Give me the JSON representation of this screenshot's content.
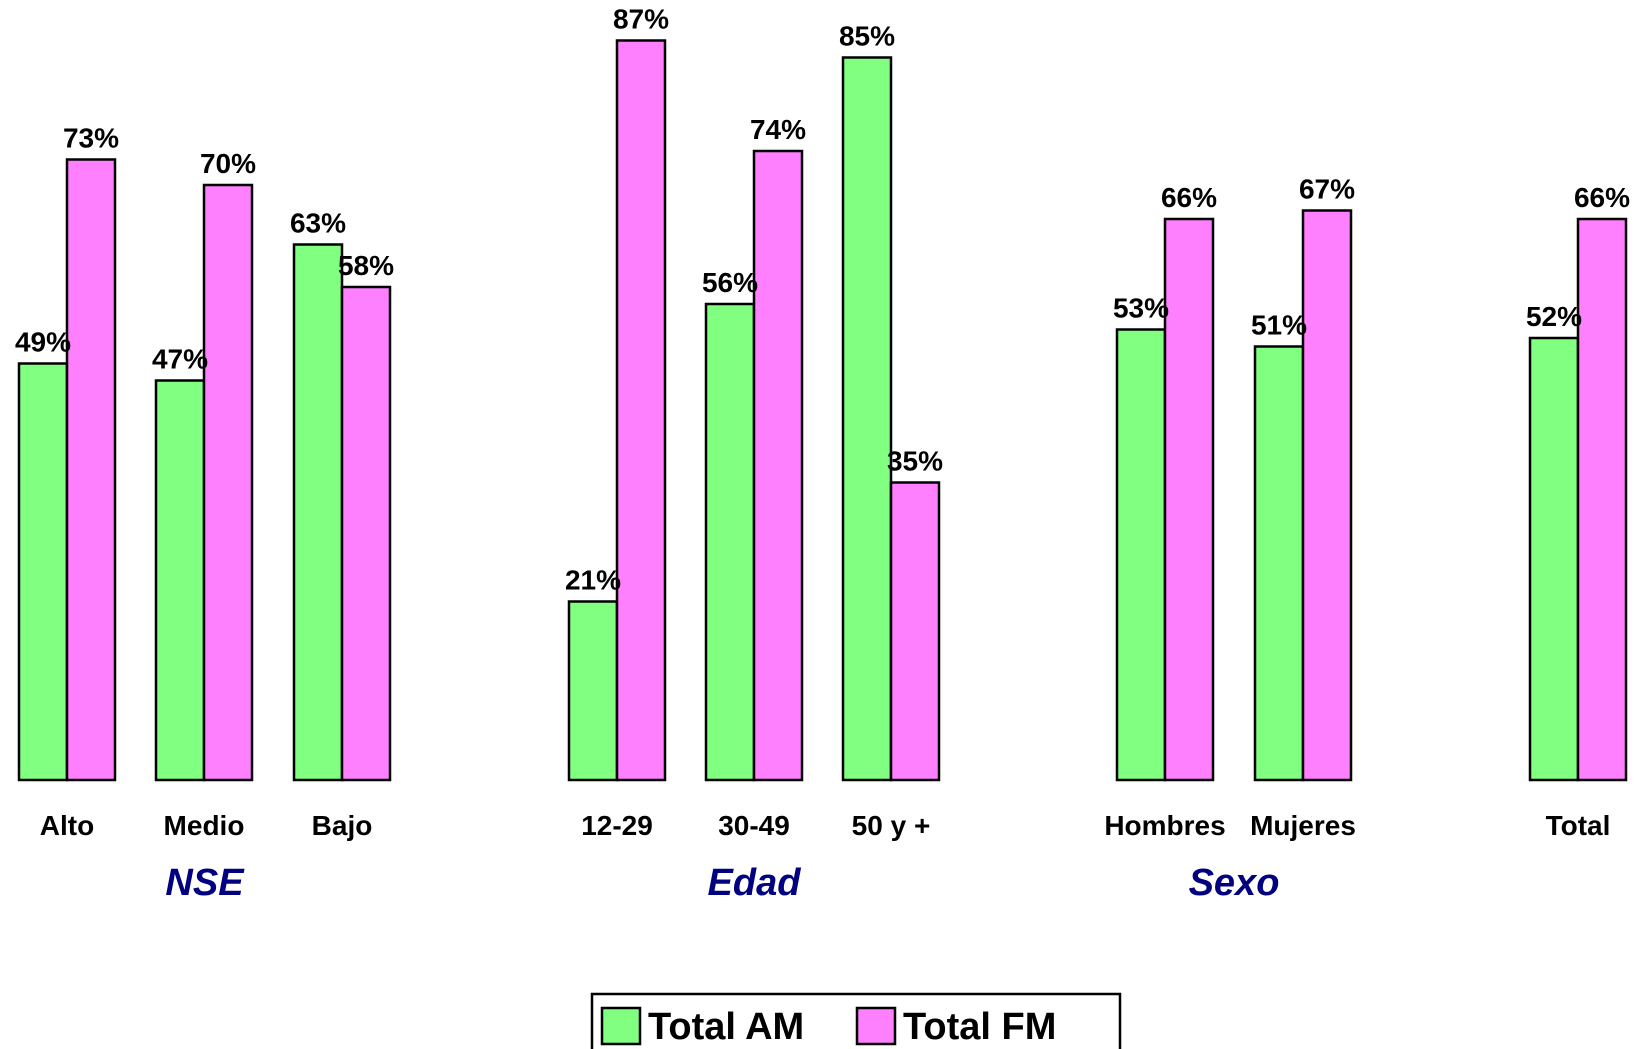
{
  "chart_data": {
    "type": "bar",
    "categories": [
      "Alto",
      "Medio",
      "Bajo",
      "12-29",
      "30-49",
      "50 y +",
      "Hombres",
      "Mujeres",
      "Total"
    ],
    "groups": [
      {
        "label": "NSE",
        "categories": [
          "Alto",
          "Medio",
          "Bajo"
        ]
      },
      {
        "label": "Edad",
        "categories": [
          "12-29",
          "30-49",
          "50 y +"
        ]
      },
      {
        "label": "Sexo",
        "categories": [
          "Hombres",
          "Mujeres"
        ]
      },
      {
        "label": "",
        "categories": [
          "Total"
        ]
      }
    ],
    "series": [
      {
        "name": "Total AM",
        "color": "#80ff80",
        "values": [
          49,
          47,
          63,
          21,
          56,
          85,
          53,
          51,
          52
        ]
      },
      {
        "name": "Total FM",
        "color": "#ff80ff",
        "values": [
          73,
          70,
          58,
          87,
          74,
          35,
          66,
          67,
          66
        ]
      }
    ],
    "value_suffix": "%",
    "ylim": [
      0,
      100
    ],
    "grid": false,
    "legend": "bottom-center",
    "group_label_color": "#000080"
  }
}
